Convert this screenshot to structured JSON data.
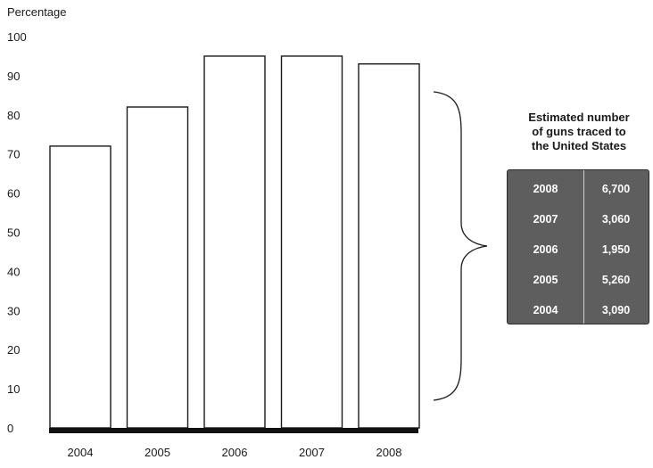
{
  "chart_data": {
    "type": "bar",
    "ylabel": "Percentage",
    "xlabel": "",
    "categories": [
      "2004",
      "2005",
      "2006",
      "2007",
      "2008"
    ],
    "values": [
      72,
      82,
      95,
      95,
      93
    ],
    "ylim": [
      0,
      100
    ],
    "yticks": [
      0,
      10,
      20,
      30,
      40,
      50,
      60,
      70,
      80,
      90,
      100
    ],
    "grid": false,
    "legend": "none"
  },
  "side_table": {
    "title_lines": [
      "Estimated number",
      "of guns traced to",
      "the United States"
    ],
    "rows": [
      {
        "year": "2008",
        "value": "6,700"
      },
      {
        "year": "2007",
        "value": "3,060"
      },
      {
        "year": "2006",
        "value": "1,950"
      },
      {
        "year": "2005",
        "value": "5,260"
      },
      {
        "year": "2004",
        "value": "3,090"
      }
    ]
  },
  "colors": {
    "bar_fill": "#ffffff",
    "bar_stroke": "#1a1a1a",
    "table_background": "#5e5e5e",
    "table_text": "#ffffff"
  }
}
